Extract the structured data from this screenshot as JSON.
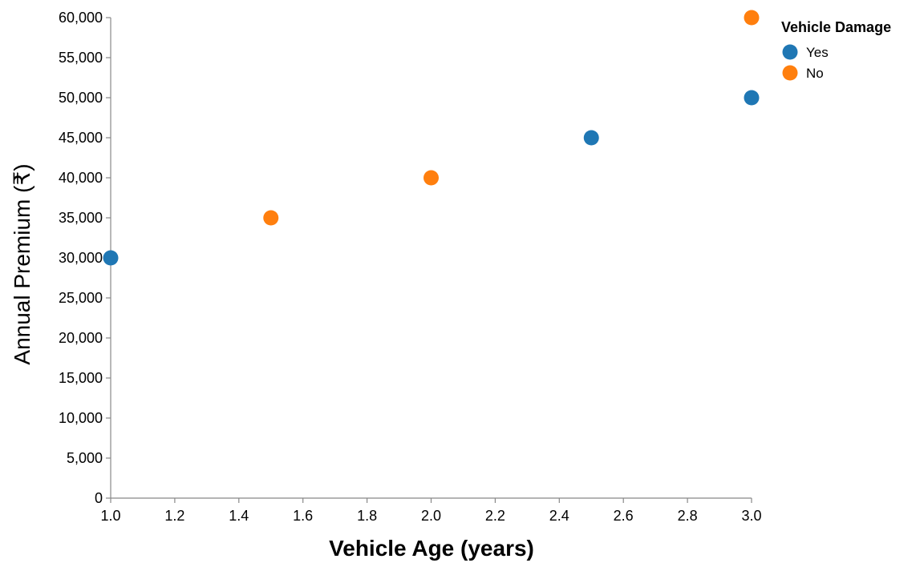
{
  "chart_data": {
    "type": "scatter",
    "title": "",
    "xlabel": "Vehicle Age (years)",
    "ylabel": "Annual Premium (₹)",
    "xlim": [
      1.0,
      3.0
    ],
    "ylim": [
      0,
      60000
    ],
    "x_ticks": [
      "1.0",
      "1.2",
      "1.4",
      "1.6",
      "1.8",
      "2.0",
      "2.2",
      "2.4",
      "2.6",
      "2.8",
      "3.0"
    ],
    "y_ticks": [
      "0",
      "5,000",
      "10,000",
      "15,000",
      "20,000",
      "25,000",
      "30,000",
      "35,000",
      "40,000",
      "45,000",
      "50,000",
      "55,000",
      "60,000"
    ],
    "grid": false,
    "legend": {
      "title": "Vehicle Damage",
      "position": "top-right"
    },
    "series": [
      {
        "name": "Yes",
        "color": "#1f77b4",
        "points": [
          {
            "x": 1.0,
            "y": 30000
          },
          {
            "x": 2.5,
            "y": 45000
          },
          {
            "x": 3.0,
            "y": 50000
          }
        ]
      },
      {
        "name": "No",
        "color": "#ff7f0e",
        "points": [
          {
            "x": 1.5,
            "y": 35000
          },
          {
            "x": 2.0,
            "y": 40000
          },
          {
            "x": 3.0,
            "y": 60000
          }
        ]
      }
    ]
  }
}
